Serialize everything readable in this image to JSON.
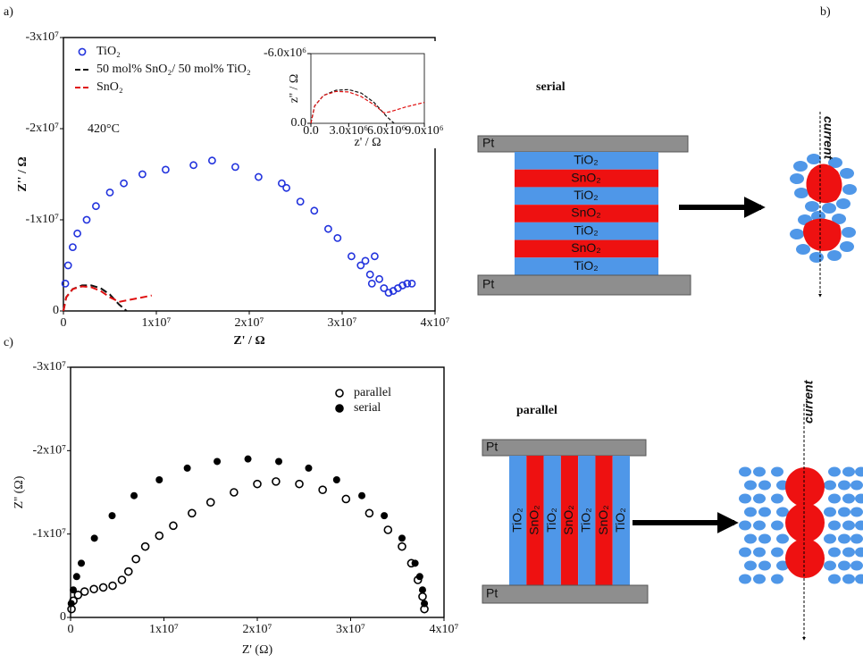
{
  "panel_labels": [
    "a)",
    "b)",
    "c)"
  ],
  "chart_data": [
    {
      "type": "scatter",
      "x_label": "Z' / Ω",
      "y_label": "Z'' / Ω",
      "annotation": "420°C",
      "legend": "upper left",
      "frame": true,
      "xlim": [
        0,
        40000000
      ],
      "ylim": [
        0,
        -30000000
      ],
      "xticks": [
        0,
        {
          "value": 10000000,
          "label": "1x10⁷"
        },
        {
          "value": 20000000,
          "label": "2x10⁷"
        },
        {
          "value": 30000000,
          "label": "3x10⁷"
        },
        {
          "value": 40000000,
          "label": "4x10⁷"
        }
      ],
      "yticks": [
        0,
        {
          "value": -10000000,
          "label": "-1x10⁷"
        },
        {
          "value": -20000000,
          "label": "-2x10⁷"
        },
        {
          "value": -30000000,
          "label": "-3x10⁷"
        }
      ],
      "series": [
        {
          "name": "TiO₂",
          "color": "#2233dd",
          "style": "open-circle",
          "x": [
            200000,
            500000,
            1000000,
            1500000,
            2500000,
            3500000,
            5000000,
            6500000,
            8500000,
            11000000,
            14000000,
            16000000,
            18500000,
            21000000,
            23500000,
            24000000,
            25500000,
            27000000,
            28500000,
            29500000,
            31000000,
            32000000,
            32500000,
            33000000,
            33200000,
            33500000,
            34000000,
            34500000,
            35000000,
            35500000,
            36000000,
            36500000,
            37000000,
            37500000
          ],
          "values": [
            -3000000,
            -5000000,
            -7000000,
            -8500000,
            -10000000,
            -11500000,
            -13000000,
            -14000000,
            -15000000,
            -15500000,
            -16000000,
            -16500000,
            -15800000,
            -14700000,
            -14000000,
            -13500000,
            -12000000,
            -11000000,
            -9000000,
            -8000000,
            -6000000,
            -5000000,
            -5500000,
            -4000000,
            -3000000,
            -6000000,
            -3500000,
            -2500000,
            -2000000,
            -2200000,
            -2500000,
            -2800000,
            -3000000,
            -3000000
          ]
        },
        {
          "name": "50 mol% SnO₂/ 50 mol% TiO₂",
          "color": "#111111",
          "style": "dashed-line",
          "x": [
            0,
            300000,
            1000000,
            2000000,
            3000000,
            4000000,
            5000000,
            6000000,
            6800000
          ],
          "values": [
            0,
            -1500000,
            -2400000,
            -2800000,
            -2800000,
            -2500000,
            -1800000,
            -700000,
            0
          ]
        },
        {
          "name": "SnO₂",
          "color": "#e01010",
          "style": "dashed-line",
          "x": [
            0,
            300000,
            1000000,
            2000000,
            3000000,
            4000000,
            5000000,
            6000000,
            7000000,
            9500000
          ],
          "values": [
            0,
            -1500000,
            -2400000,
            -2700000,
            -2600000,
            -2200000,
            -1500000,
            -1000000,
            -1200000,
            -1700000
          ]
        }
      ]
    },
    {
      "type": "scatter",
      "x_label": "z' / Ω",
      "y_label": "z'' / Ω",
      "frame": true,
      "xlim": [
        0,
        9000000
      ],
      "ylim": [
        0,
        -6000000
      ],
      "xticks": [
        {
          "value": 0,
          "label": "0.0"
        },
        {
          "value": 3000000,
          "label": "3.0x10⁶"
        },
        {
          "value": 6000000,
          "label": "6.0x10⁶"
        },
        {
          "value": 9000000,
          "label": "9.0x10⁶"
        }
      ],
      "yticks": [
        {
          "value": 0,
          "label": "0.0"
        },
        {
          "value": -6000000,
          "label": "-6.0x10⁶"
        }
      ],
      "series": [
        {
          "color": "#111111",
          "style": "dashed-line",
          "x": [
            0,
            300000,
            1000000,
            2000000,
            3000000,
            4000000,
            5000000,
            6000000,
            6600000
          ],
          "values": [
            0,
            -1500000,
            -2400000,
            -2850000,
            -2900000,
            -2600000,
            -1800000,
            -600000,
            0
          ]
        },
        {
          "color": "#e01010",
          "style": "dashed-line",
          "x": [
            0,
            300000,
            1000000,
            2000000,
            3000000,
            4000000,
            5000000,
            5800000,
            6300000,
            7500000,
            9000000
          ],
          "values": [
            0,
            -1500000,
            -2400000,
            -2750000,
            -2700000,
            -2300000,
            -1600000,
            -900000,
            -1000000,
            -1400000,
            -1800000
          ]
        }
      ]
    },
    {
      "type": "scatter",
      "x_label": "Z' (Ω)",
      "y_label": "Z'' (Ω)",
      "legend": "upper right",
      "frame": true,
      "xlim": [
        0,
        40000000
      ],
      "ylim": [
        0,
        -30000000
      ],
      "xticks": [
        0,
        {
          "value": 10000000,
          "label": "1x10⁷"
        },
        {
          "value": 20000000,
          "label": "2x10⁷"
        },
        {
          "value": 30000000,
          "label": "3x10⁷"
        },
        {
          "value": 40000000,
          "label": "4x10⁷"
        }
      ],
      "yticks": [
        0,
        {
          "value": -10000000,
          "label": "-1x10⁷"
        },
        {
          "value": -20000000,
          "label": "-2x10⁷"
        },
        {
          "value": -30000000,
          "label": "-3x10⁷"
        }
      ],
      "series": [
        {
          "name": "parallel",
          "color": "#000000",
          "style": "open-circle",
          "x": [
            100000,
            300000,
            800000,
            1500000,
            2500000,
            3500000,
            4500000,
            5500000,
            6200000,
            7000000,
            8000000,
            9500000,
            11000000,
            13000000,
            15000000,
            17500000,
            20000000,
            22000000,
            24500000,
            27000000,
            29500000,
            32000000,
            34000000,
            35500000,
            36500000,
            37200000,
            37700000,
            37900000
          ],
          "values": [
            -1000000,
            -2000000,
            -2700000,
            -3100000,
            -3400000,
            -3600000,
            -3800000,
            -4500000,
            -5500000,
            -7000000,
            -8500000,
            -9800000,
            -11000000,
            -12500000,
            -13800000,
            -15000000,
            -16000000,
            -16300000,
            -16000000,
            -15300000,
            -14200000,
            -12500000,
            -10500000,
            -8500000,
            -6500000,
            -4500000,
            -2500000,
            -1000000
          ]
        },
        {
          "name": "serial",
          "color": "#000000",
          "style": "filled-circle",
          "x": [
            70000,
            290000,
            650000,
            1150000,
            2550000,
            4450000,
            6800000,
            9500000,
            12500000,
            15700000,
            19000000,
            22300000,
            25500000,
            28500000,
            31200000,
            33600000,
            35500000,
            36900000,
            37400000,
            37700000,
            37900000
          ],
          "values": [
            -1660000,
            -3300000,
            -4900000,
            -6500000,
            -9500000,
            -12200000,
            -14600000,
            -16500000,
            -17900000,
            -18700000,
            -19000000,
            -18700000,
            -17900000,
            -16500000,
            -14600000,
            -12200000,
            -9500000,
            -6500000,
            -4900000,
            -3300000,
            -1660000
          ]
        }
      ]
    }
  ],
  "diagrams": {
    "serial": {
      "title": "serial",
      "top": "Pt",
      "bottom": "Pt",
      "current": "current",
      "layers": [
        "TiO₂",
        "SnO₂",
        "TiO₂",
        "SnO₂",
        "TiO₂",
        "SnO₂",
        "TiO₂"
      ]
    },
    "parallel": {
      "title": "parallel",
      "top": "Pt",
      "bottom": "Pt",
      "current": "current",
      "layers": [
        "TiO₂",
        "SnO₂",
        "TiO₂",
        "SnO₂",
        "TiO₂",
        "SnO₂",
        "TiO₂"
      ]
    }
  }
}
